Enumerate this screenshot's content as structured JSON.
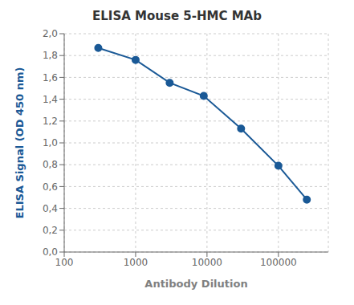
{
  "chart_data": {
    "type": "line",
    "title": "ELISA Mouse 5-HMC MAb",
    "xlabel": "Antibody Dilution",
    "ylabel": "ELISA Signal (OD 450 nm)",
    "x": [
      300,
      1000,
      3000,
      9000,
      30000,
      100000,
      250000
    ],
    "series": [
      {
        "values": [
          1.87,
          1.76,
          1.55,
          1.43,
          1.13,
          0.79,
          0.48
        ],
        "color": "#1a5996",
        "marker": "circle",
        "line_style": "solid"
      }
    ],
    "log": "x",
    "xlim": [
      100,
      500000
    ],
    "xticks": [
      100,
      1000,
      10000,
      100000
    ],
    "ylim": [
      0.0,
      2.0
    ],
    "yticks": [
      {
        "value": 0.0,
        "label": "0,0"
      },
      {
        "value": 0.2,
        "label": "0,2"
      },
      {
        "value": 0.4,
        "label": "0,4"
      },
      {
        "value": 0.6,
        "label": "0,6"
      },
      {
        "value": 0.8,
        "label": "0,8"
      },
      {
        "value": 1.0,
        "label": "1,0"
      },
      {
        "value": 1.2,
        "label": "1,2"
      },
      {
        "value": 1.4,
        "label": "1,4"
      },
      {
        "value": 1.6,
        "label": "1,6"
      },
      {
        "value": 1.8,
        "label": "1,8"
      },
      {
        "value": 2.0,
        "label": "2,0"
      }
    ],
    "grid": true
  }
}
